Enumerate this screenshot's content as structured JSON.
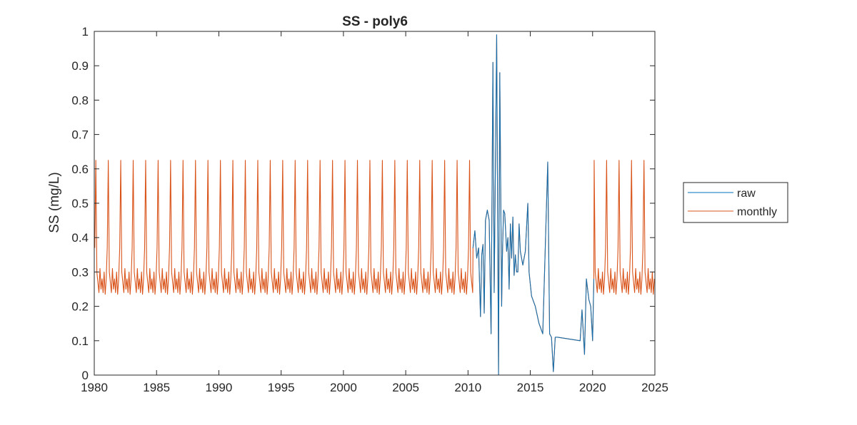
{
  "chart_data": {
    "type": "line",
    "title": "SS - poly6",
    "xlabel": "",
    "ylabel": "SS (mg/L)",
    "xlim": [
      1980,
      2025
    ],
    "ylim": [
      0,
      1
    ],
    "xticks": [
      1980,
      1985,
      1990,
      1995,
      2000,
      2005,
      2010,
      2015,
      2020,
      2025
    ],
    "yticks": [
      0,
      0.1,
      0.2,
      0.3,
      0.4,
      0.5,
      0.6,
      0.7,
      0.8,
      0.9,
      1
    ],
    "grid": false,
    "legend_position": "outside-right",
    "monthly_cycle": [
      0.37,
      0.625,
      0.3,
      0.27,
      0.24,
      0.31,
      0.25,
      0.28,
      0.24,
      0.3,
      0.235,
      0.28
    ],
    "monthly_start_year": 1980,
    "monthly_end_year": 2025,
    "series": [
      {
        "name": "raw",
        "color": "#0072BD",
        "x": [
          2010.4,
          2010.55,
          2010.7,
          2010.85,
          2011.0,
          2011.1,
          2011.2,
          2011.3,
          2011.4,
          2011.55,
          2011.7,
          2011.85,
          2012.0,
          2012.1,
          2012.3,
          2012.45,
          2012.55,
          2012.7,
          2012.75,
          2012.85,
          2012.95,
          2013.1,
          2013.2,
          2013.3,
          2013.4,
          2013.5,
          2013.6,
          2013.7,
          2013.8,
          2013.9,
          2014.0,
          2014.1,
          2014.2,
          2014.4,
          2014.6,
          2014.8,
          2014.9,
          2015.1,
          2015.4,
          2015.7,
          2016.0,
          2016.4,
          2016.55,
          2016.7,
          2016.85,
          2017.0,
          2017.2,
          2019.0,
          2019.15,
          2019.35,
          2019.5,
          2019.7,
          2019.85,
          2020.0,
          2020.1
        ],
        "y": [
          0.37,
          0.42,
          0.34,
          0.37,
          0.17,
          0.35,
          0.38,
          0.18,
          0.45,
          0.48,
          0.45,
          0.12,
          0.91,
          0.24,
          0.99,
          0.0,
          0.88,
          0.2,
          0.33,
          0.48,
          0.47,
          0.36,
          0.4,
          0.25,
          0.44,
          0.34,
          0.46,
          0.29,
          0.35,
          0.3,
          0.3,
          0.44,
          0.36,
          0.32,
          0.36,
          0.5,
          0.3,
          0.23,
          0.2,
          0.15,
          0.12,
          0.62,
          0.12,
          0.11,
          0.01,
          0.11,
          0.11,
          0.1,
          0.19,
          0.06,
          0.28,
          0.22,
          0.2,
          0.1,
          0.28
        ]
      },
      {
        "name": "monthly",
        "color": "#D95319"
      }
    ]
  }
}
